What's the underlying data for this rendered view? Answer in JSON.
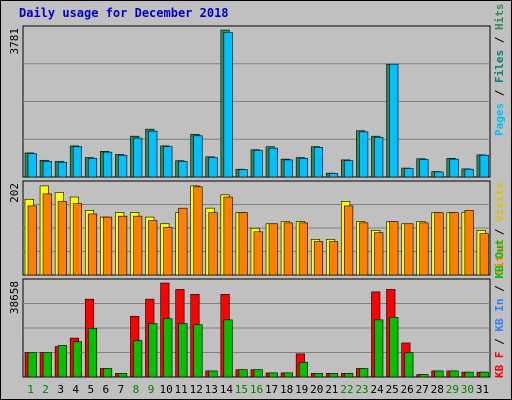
{
  "title": "Daily usage for December 2018",
  "colors": {
    "pages": "#00c0ff",
    "files": "#008080",
    "hits": "#2e8b57",
    "visits": "#ffff00",
    "sites": "#ff8000",
    "kb_f": "#ff0000",
    "kb_in": "#00c000",
    "kb_out": "#008080",
    "weekday_label": "#000000",
    "weekend_label": "#008000"
  },
  "chart_data": [
    {
      "type": "bar",
      "panel": "hits",
      "categories": [
        "1",
        "2",
        "3",
        "4",
        "5",
        "6",
        "7",
        "8",
        "9",
        "10",
        "11",
        "12",
        "13",
        "14",
        "15",
        "16",
        "17",
        "18",
        "19",
        "20",
        "21",
        "22",
        "23",
        "24",
        "25",
        "26",
        "27",
        "28",
        "29",
        "30",
        "31"
      ],
      "max_label": "3781",
      "ylim": [
        0,
        3781
      ],
      "series": [
        {
          "name": "Hits",
          "values": [
            620,
            430,
            400,
            800,
            500,
            660,
            580,
            1050,
            1230,
            800,
            420,
            1100,
            520,
            3781,
            200,
            700,
            780,
            460,
            500,
            780,
            100,
            440,
            1190,
            1050,
            2900,
            230,
            470,
            140,
            480,
            210,
            570
          ]
        },
        {
          "name": "Files",
          "values": [
            600,
            400,
            380,
            780,
            480,
            640,
            560,
            1000,
            1180,
            780,
            400,
            1060,
            500,
            3720,
            190,
            680,
            740,
            440,
            480,
            760,
            90,
            420,
            1160,
            1020,
            2900,
            220,
            450,
            130,
            460,
            200,
            560
          ]
        }
      ],
      "axis_labels": {
        "pages": "Pages",
        "files": "Files",
        "hits": "Hits",
        "sep": " / "
      }
    },
    {
      "type": "bar",
      "panel": "visits",
      "categories": [
        "1",
        "2",
        "3",
        "4",
        "5",
        "6",
        "7",
        "8",
        "9",
        "10",
        "11",
        "12",
        "13",
        "14",
        "15",
        "16",
        "17",
        "18",
        "19",
        "20",
        "21",
        "22",
        "23",
        "24",
        "25",
        "26",
        "27",
        "28",
        "29",
        "30",
        "31"
      ],
      "max_label": "202",
      "ylim": [
        0,
        202
      ],
      "series": [
        {
          "name": "Visits",
          "values": [
            170,
            200,
            185,
            175,
            145,
            130,
            140,
            140,
            130,
            115,
            140,
            200,
            150,
            180,
            140,
            105,
            115,
            120,
            120,
            80,
            80,
            165,
            120,
            100,
            120,
            115,
            120,
            140,
            140,
            140,
            100
          ]
        },
        {
          "name": "Sites",
          "values": [
            155,
            182,
            165,
            160,
            137,
            130,
            132,
            132,
            122,
            107,
            150,
            198,
            140,
            175,
            140,
            97,
            115,
            117,
            117,
            75,
            75,
            155,
            117,
            95,
            120,
            115,
            117,
            140,
            140,
            145,
            93
          ]
        }
      ],
      "axis_labels": {
        "visits": "Visits",
        "sites": "Sites",
        "sep": " / "
      }
    },
    {
      "type": "bar",
      "panel": "kbytes",
      "categories": [
        "1",
        "2",
        "3",
        "4",
        "5",
        "6",
        "7",
        "8",
        "9",
        "10",
        "11",
        "12",
        "13",
        "14",
        "15",
        "16",
        "17",
        "18",
        "19",
        "20",
        "21",
        "22",
        "23",
        "24",
        "25",
        "26",
        "27",
        "28",
        "29",
        "30",
        "31"
      ],
      "max_label": "38658",
      "ylim": [
        0,
        38658
      ],
      "series": [
        {
          "name": "KB F",
          "values": [
            10000,
            10000,
            12500,
            16000,
            32000,
            3500,
            1500,
            25000,
            32000,
            38658,
            36000,
            34000,
            2500,
            34000,
            3000,
            3000,
            1700,
            1700,
            9500,
            1500,
            1500,
            1500,
            3500,
            35000,
            36000,
            14000,
            1000,
            2500,
            2500,
            2000,
            2000
          ]
        },
        {
          "name": "KB In",
          "values": [
            10000,
            10000,
            13000,
            14500,
            20000,
            3500,
            1500,
            15000,
            22000,
            24000,
            22000,
            21500,
            2500,
            23500,
            3000,
            3000,
            1700,
            1700,
            6000,
            1500,
            1500,
            1500,
            3500,
            23500,
            24500,
            10000,
            1000,
            2500,
            2500,
            2000,
            2000
          ]
        }
      ],
      "axis_labels": {
        "kbf": "KB F",
        "kbin": "KB In",
        "kbout": "KB Out",
        "sep": " / "
      }
    }
  ],
  "weekend_days": [
    1,
    2,
    8,
    9,
    15,
    16,
    22,
    23,
    29,
    30
  ]
}
